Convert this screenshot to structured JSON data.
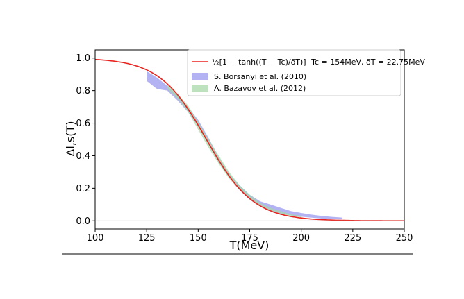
{
  "chart_data": {
    "type": "line",
    "xlabel": "T(MeV)",
    "ylabel": "Δl,s(T)",
    "xlim": [
      100,
      250
    ],
    "ylim": [
      -0.05,
      1.05
    ],
    "xticks": [
      "100",
      "125",
      "150",
      "175",
      "200",
      "225",
      "250"
    ],
    "yticks": [
      "0.0",
      "0.2",
      "0.4",
      "0.6",
      "0.8",
      "1.0"
    ],
    "legend_position": "top-right",
    "grid": false,
    "fit": {
      "label_formula": "½[1 − tanh((T − Tc)/δT)]",
      "label_params": "Tc = 154MeV,  δT = 22.75MeV",
      "Tc": 154,
      "deltaT": 22.75,
      "color": "#e8231f"
    },
    "series": [
      {
        "name": "S. Borsanyi et al. (2010)",
        "color": "#9a9af0",
        "band_x": [
          125,
          130,
          135,
          140,
          145,
          150,
          155,
          160,
          165,
          170,
          175,
          180,
          185,
          190,
          195,
          200,
          205,
          210,
          215,
          220
        ],
        "band_low": [
          0.86,
          0.81,
          0.8,
          0.74,
          0.67,
          0.58,
          0.47,
          0.36,
          0.27,
          0.19,
          0.13,
          0.09,
          0.06,
          0.045,
          0.033,
          0.025,
          0.019,
          0.014,
          0.011,
          0.009
        ],
        "band_high": [
          0.92,
          0.88,
          0.83,
          0.77,
          0.7,
          0.62,
          0.51,
          0.39,
          0.29,
          0.22,
          0.16,
          0.12,
          0.1,
          0.08,
          0.06,
          0.048,
          0.038,
          0.03,
          0.024,
          0.02
        ]
      },
      {
        "name": "A. Bazavov et al. (2012)",
        "color": "#a8d8a8",
        "band_x": [
          135,
          140,
          145,
          150,
          155,
          160,
          165,
          170,
          175,
          180,
          185,
          190,
          195,
          200
        ],
        "band_low": [
          0.81,
          0.75,
          0.67,
          0.56,
          0.45,
          0.35,
          0.26,
          0.19,
          0.13,
          0.09,
          0.06,
          0.04,
          0.03,
          0.02
        ],
        "band_high": [
          0.84,
          0.78,
          0.71,
          0.61,
          0.5,
          0.4,
          0.3,
          0.22,
          0.16,
          0.11,
          0.08,
          0.06,
          0.04,
          0.03
        ]
      }
    ]
  }
}
